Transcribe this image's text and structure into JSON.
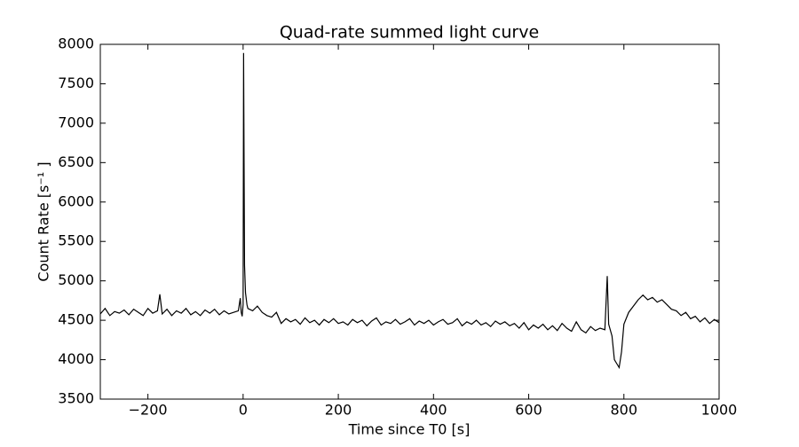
{
  "chart_data": {
    "type": "line",
    "title": "Quad-rate summed light curve",
    "x_label": "Time since T0 [s]",
    "y_label": "Count Rate [s⁻¹ ]",
    "xlim": [
      -300,
      1000
    ],
    "xticks": [
      {
        "value": -200,
        "label": "−200"
      },
      0,
      200,
      400,
      600,
      800,
      1000
    ],
    "ylim": [
      3500,
      8000
    ],
    "yticks": [
      3500,
      4000,
      4500,
      5000,
      5500,
      6000,
      6500,
      7000,
      7500,
      8000
    ],
    "grid": false,
    "series": [
      {
        "color": "#000000",
        "x": [
          -300,
          -290,
          -280,
          -270,
          -260,
          -250,
          -240,
          -230,
          -220,
          -210,
          -200,
          -190,
          -180,
          -175,
          -170,
          -160,
          -150,
          -140,
          -130,
          -120,
          -110,
          -100,
          -90,
          -80,
          -70,
          -60,
          -50,
          -40,
          -30,
          -20,
          -10,
          -6,
          -4,
          -2,
          0,
          1,
          2,
          3,
          5,
          8,
          10,
          20,
          30,
          40,
          50,
          60,
          70,
          80,
          90,
          100,
          110,
          120,
          130,
          140,
          150,
          160,
          170,
          180,
          190,
          200,
          210,
          220,
          230,
          240,
          250,
          260,
          270,
          280,
          290,
          300,
          310,
          320,
          330,
          340,
          350,
          360,
          370,
          380,
          390,
          400,
          410,
          420,
          430,
          440,
          450,
          460,
          470,
          480,
          490,
          500,
          510,
          520,
          530,
          540,
          550,
          560,
          570,
          580,
          590,
          600,
          610,
          620,
          630,
          640,
          650,
          660,
          670,
          680,
          690,
          700,
          710,
          720,
          730,
          740,
          750,
          760,
          765,
          768,
          775,
          780,
          785,
          790,
          795,
          800,
          810,
          820,
          830,
          840,
          850,
          860,
          870,
          880,
          890,
          900,
          910,
          920,
          930,
          940,
          950,
          960,
          970,
          980,
          990,
          1000
        ],
        "values": [
          4580,
          4650,
          4560,
          4610,
          4590,
          4630,
          4570,
          4640,
          4600,
          4560,
          4650,
          4590,
          4620,
          4830,
          4580,
          4640,
          4560,
          4620,
          4590,
          4650,
          4570,
          4610,
          4560,
          4630,
          4590,
          4640,
          4570,
          4620,
          4580,
          4600,
          4620,
          4780,
          4600,
          4550,
          4700,
          7890,
          6500,
          5200,
          4850,
          4700,
          4650,
          4620,
          4680,
          4600,
          4560,
          4540,
          4600,
          4460,
          4520,
          4480,
          4510,
          4450,
          4530,
          4470,
          4500,
          4440,
          4510,
          4470,
          4520,
          4460,
          4480,
          4440,
          4510,
          4470,
          4500,
          4430,
          4490,
          4530,
          4440,
          4480,
          4460,
          4510,
          4450,
          4480,
          4520,
          4440,
          4490,
          4460,
          4500,
          4440,
          4480,
          4510,
          4450,
          4470,
          4520,
          4430,
          4480,
          4450,
          4500,
          4440,
          4470,
          4420,
          4490,
          4450,
          4480,
          4430,
          4460,
          4400,
          4470,
          4380,
          4440,
          4400,
          4450,
          4380,
          4430,
          4370,
          4460,
          4400,
          4360,
          4480,
          4380,
          4340,
          4420,
          4370,
          4400,
          4380,
          5060,
          4450,
          4300,
          4000,
          3950,
          3900,
          4100,
          4450,
          4600,
          4680,
          4760,
          4820,
          4760,
          4790,
          4730,
          4760,
          4700,
          4640,
          4620,
          4560,
          4600,
          4520,
          4550,
          4480,
          4530,
          4460,
          4510,
          4470
        ]
      }
    ]
  }
}
